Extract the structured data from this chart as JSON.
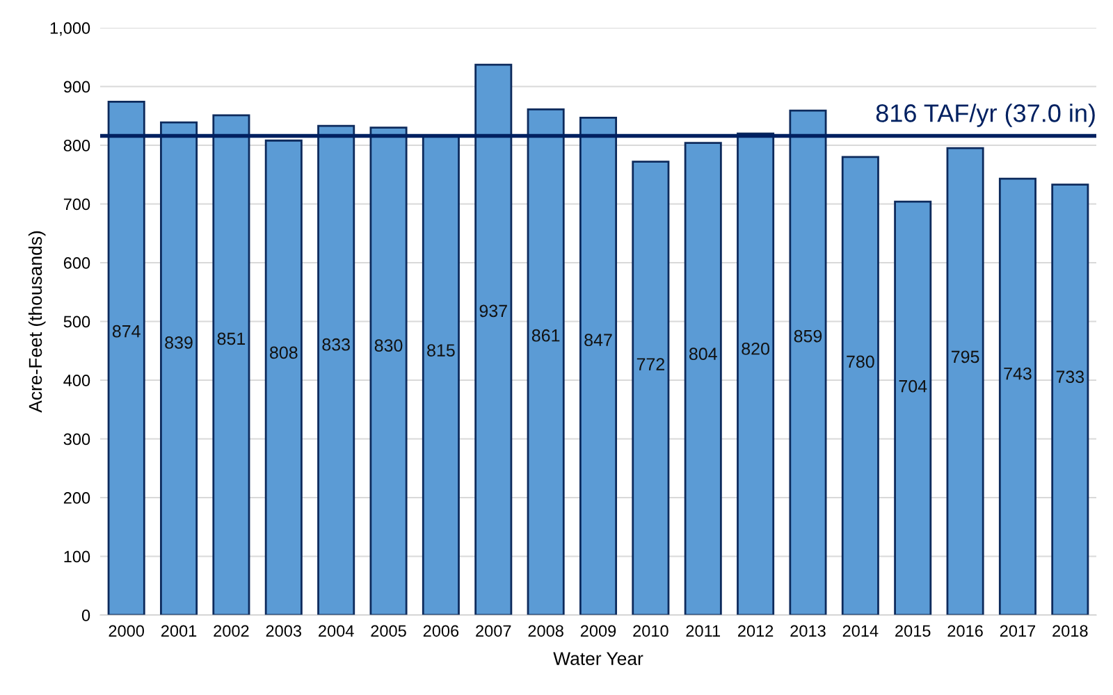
{
  "chart_data": {
    "type": "bar",
    "xlabel": "Water Year",
    "ylabel": "Acre-Feet (thousands)",
    "categories": [
      "2000",
      "2001",
      "2002",
      "2003",
      "2004",
      "2005",
      "2006",
      "2007",
      "2008",
      "2009",
      "2010",
      "2011",
      "2012",
      "2013",
      "2014",
      "2015",
      "2016",
      "2017",
      "2018"
    ],
    "values": [
      874,
      839,
      851,
      808,
      833,
      830,
      815,
      937,
      861,
      847,
      772,
      804,
      820,
      859,
      780,
      704,
      795,
      743,
      733
    ],
    "color": "#5b9bd5",
    "data_labels": true,
    "ylim": [
      0,
      1000
    ],
    "yticks": [
      0,
      100,
      200,
      300,
      400,
      500,
      600,
      700,
      800,
      900,
      {
        "value": 1000,
        "label": "1,000"
      }
    ],
    "grid": "y",
    "legend": false,
    "ref_lines": [
      {
        "axis": "y",
        "value": 816,
        "label": "816 TAF/yr (37.0 in)",
        "color": "#002060",
        "line_style": "solid"
      }
    ]
  }
}
